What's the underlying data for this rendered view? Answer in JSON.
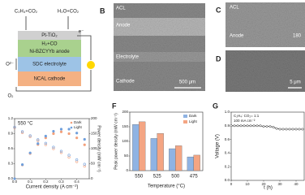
{
  "schematic": {
    "reactant": "C₂H₄+CO₂",
    "product": "H₂O+CO₂",
    "catalyst": "Pt-TiO₂",
    "intermediate": "H₂+CO",
    "anode": "Ni-BZCYYb anode",
    "ion": "O²⁻",
    "electrolyte": "SDC electrolyte",
    "cathode": "NCAL cathode",
    "oxidant": "O₂",
    "electron": "e⁻"
  },
  "images": [
    {
      "label": "B",
      "layers": [
        "ACL",
        "Anode",
        "Electrolyte",
        "Cathode"
      ],
      "scale": "500 μm"
    },
    {
      "label": "C",
      "layers": [
        "ACL",
        "Anode"
      ],
      "scale": "180"
    },
    {
      "label": "D",
      "scale": "5 μm"
    }
  ],
  "chart_data": [
    {
      "type": "line",
      "annotation": "550 °C",
      "xlabel": "Current density (A cm⁻²)",
      "y2label": "Power density (mW cm⁻²)",
      "x": [
        0,
        0.05,
        0.1,
        0.15,
        0.2,
        0.25,
        0.3,
        0.35,
        0.4,
        0.45
      ],
      "xlim": [
        0,
        0.48
      ],
      "xticks": [
        {
          "value": 0,
          "label": "0.0"
        },
        0.1,
        0.2,
        0.3,
        0.4
      ],
      "ylim": [
        0,
        1.2
      ],
      "yticks": [
        {
          "value": 0,
          "label": "0.0"
        },
        0.3,
        0.6,
        0.9,
        1.2
      ],
      "y2lim": [
        0,
        200
      ],
      "y2ticks": [
        0,
        50,
        100,
        150,
        200
      ],
      "series": [
        {
          "name": "Dark",
          "color": "#f2a07b",
          "voltage": [
            1.02,
            0.92,
            0.84,
            0.76,
            0.68,
            0.6,
            0.52,
            0.43,
            0.34,
            0.25
          ],
          "power": [
            0,
            46,
            84,
            114,
            136,
            150,
            156,
            150,
            136,
            113
          ]
        },
        {
          "name": "Light",
          "color": "#6f9fdc",
          "voltage": [
            1.03,
            0.94,
            0.86,
            0.78,
            0.71,
            0.63,
            0.55,
            0.47,
            0.38,
            0.29
          ],
          "power": [
            0,
            47,
            86,
            117,
            142,
            158,
            165,
            165,
            152,
            131
          ]
        }
      ]
    },
    {
      "type": "bar",
      "label": "F",
      "xlabel": "Temperature (°C)",
      "ylabel": "Peak power density (mW cm⁻²)",
      "categories": [
        "550",
        "525",
        "500",
        "475"
      ],
      "ylim": [
        0,
        200
      ],
      "yticks": [
        0,
        50,
        100,
        150,
        200
      ],
      "series": [
        {
          "name": "Dark",
          "color": "#8fb3e3",
          "values": [
            158,
            110,
            75,
            47
          ]
        },
        {
          "name": "Light",
          "color": "#f4a583",
          "values": [
            167,
            127,
            85,
            53
          ]
        }
      ]
    },
    {
      "type": "line",
      "label": "G",
      "xlabel": "t (h)",
      "ylabel": "Voltage (V)",
      "annotations": [
        "C₂H₄: CO₂= 1:1",
        "100 mA cm⁻²"
      ],
      "x": [
        0,
        2,
        4,
        6,
        8,
        10,
        12,
        14,
        16,
        18,
        20,
        22,
        24,
        26,
        28,
        30,
        32,
        34,
        36,
        38,
        40,
        42,
        44
      ],
      "xlim": [
        0,
        45
      ],
      "xticks": [
        0,
        10,
        20,
        30,
        40
      ],
      "ylim": [
        0,
        1
      ],
      "yticks": [
        {
          "value": 0,
          "label": "0.0"
        },
        0.2,
        0.4,
        0.6,
        0.8,
        {
          "value": 1,
          "label": "1.0"
        }
      ],
      "series": [
        {
          "color": "#333333",
          "values": [
            0.8,
            0.8,
            0.8,
            0.8,
            0.8,
            0.8,
            0.8,
            0.8,
            0.8,
            0.8,
            0.79,
            0.79,
            0.79,
            0.78,
            0.76,
            0.75,
            0.75,
            0.75,
            0.75,
            0.75,
            0.75,
            0.75,
            0.75
          ]
        }
      ]
    }
  ]
}
